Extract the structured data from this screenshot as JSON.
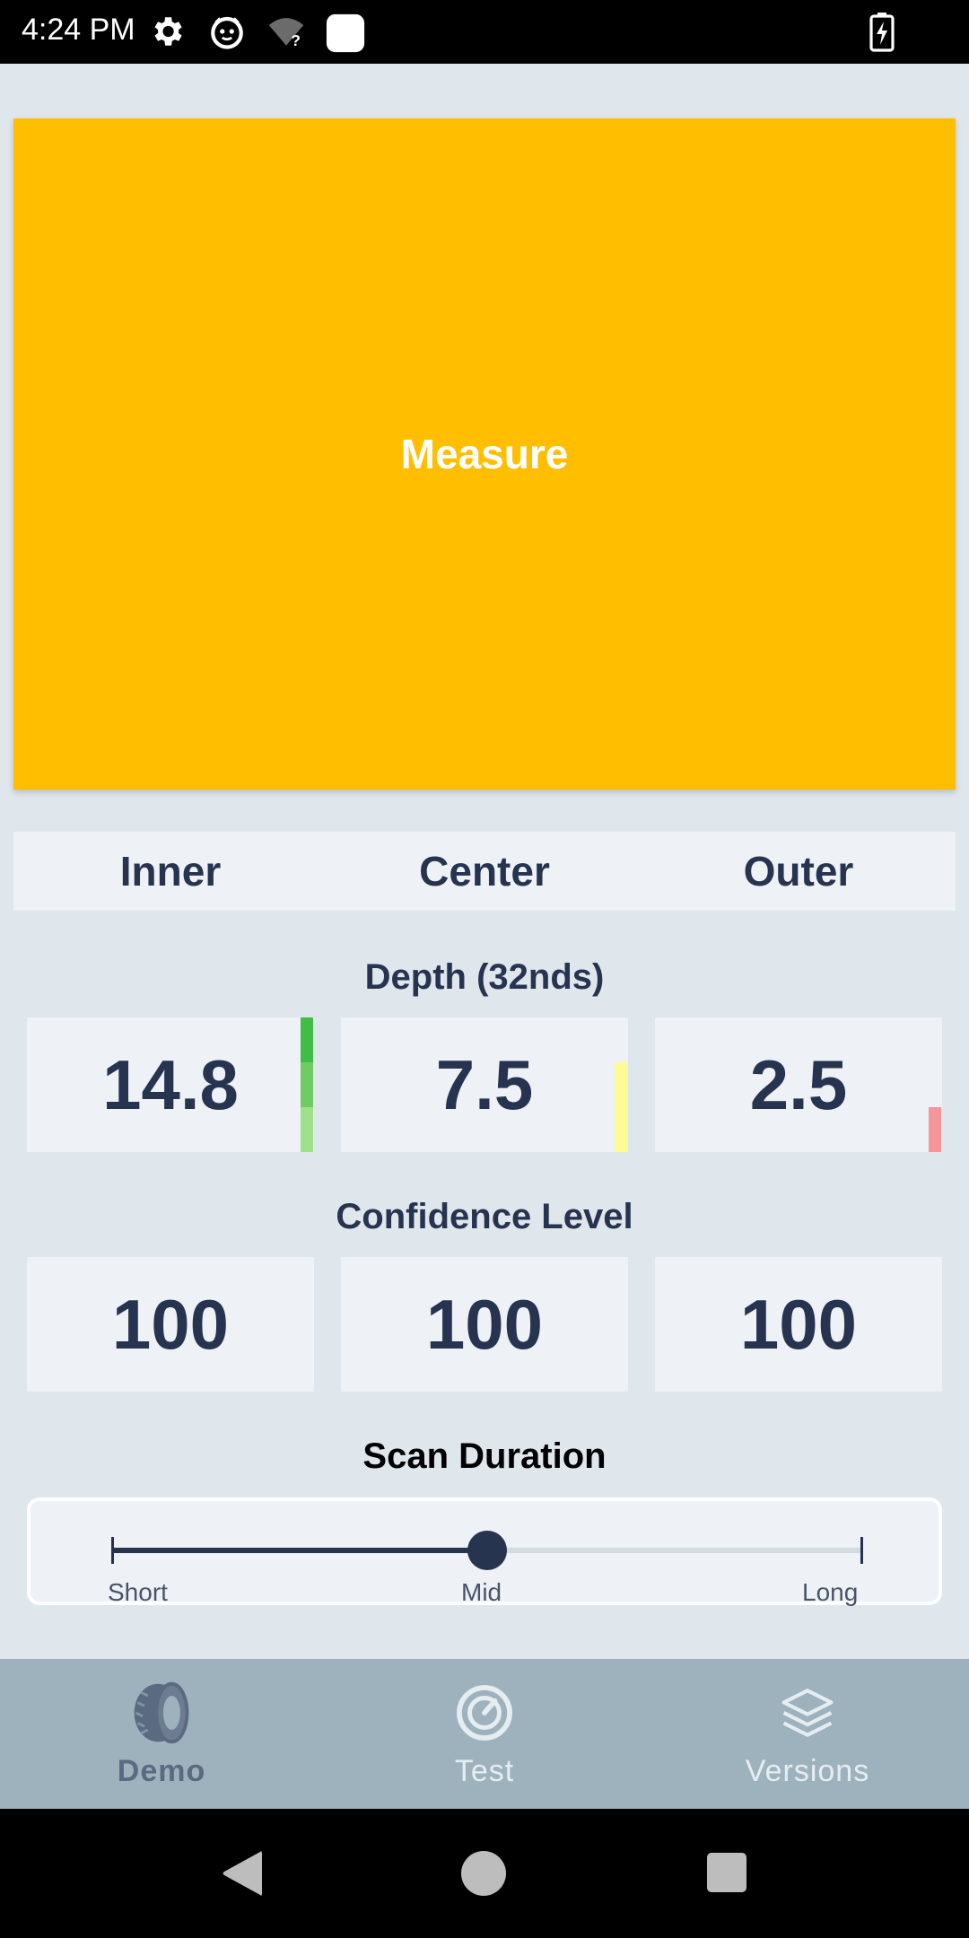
{
  "status_bar": {
    "time": "4:24 PM",
    "icons": [
      "gear-icon",
      "cat-face-icon",
      "wifi-question-icon",
      "white-square-icon",
      "battery-charging-icon"
    ]
  },
  "measure_button": {
    "label": "Measure"
  },
  "columns": {
    "inner": "Inner",
    "center": "Center",
    "outer": "Outer"
  },
  "depth": {
    "title": "Depth (32nds)",
    "inner": "14.8",
    "center": "7.5",
    "outer": "2.5",
    "indicator_levels": {
      "inner": 3,
      "center": 2,
      "outer": 1
    },
    "indicator_colors": {
      "inner": [
        "#3fbd44",
        "#6fcc63",
        "#9ee08b"
      ],
      "center": "#fdfc94",
      "outer": "#f6959b"
    }
  },
  "confidence": {
    "title": "Confidence Level",
    "inner": "100",
    "center": "100",
    "outer": "100"
  },
  "scan_duration": {
    "title": "Scan Duration",
    "labels": {
      "short": "Short",
      "mid": "Mid",
      "long": "Long"
    },
    "selected": "Mid",
    "value_fraction": 0.5
  },
  "tabs": [
    {
      "label": "Demo",
      "icon": "tire-icon",
      "active": true
    },
    {
      "label": "Test",
      "icon": "gauge-icon",
      "active": false
    },
    {
      "label": "Versions",
      "icon": "layers-icon",
      "active": false
    }
  ],
  "colors": {
    "accent": "#ffbf00",
    "text_dark": "#273450",
    "background": "#dfe6ec",
    "card": "#eef1f6",
    "tabbar": "#9eb2be",
    "tab_active": "#5a6a80",
    "tab_inactive": "#e6edf1"
  }
}
